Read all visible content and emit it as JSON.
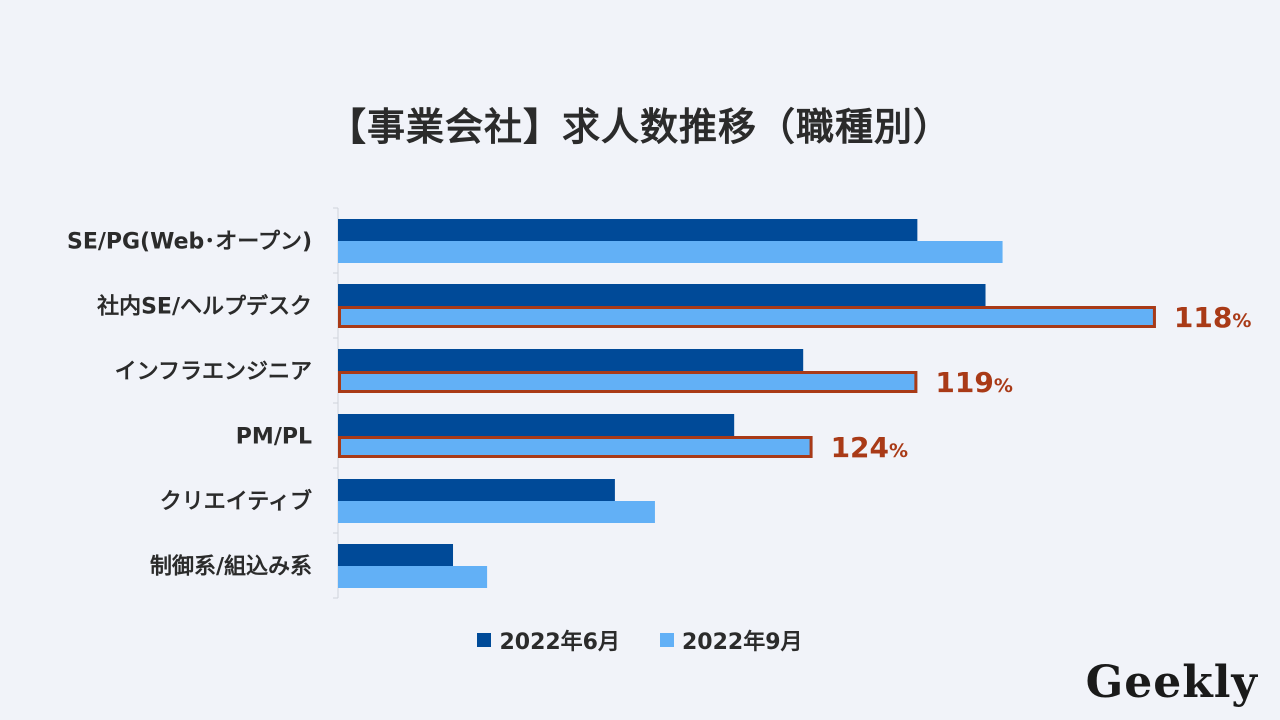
{
  "title": "【事業会社】求人数推移（職種別）",
  "logo": "Geekly",
  "colors": {
    "series1": "#004a98",
    "series2": "#62b0f6",
    "highlight": "#a93a17",
    "axis": "#d0d3da",
    "background": "#f1f3f9"
  },
  "chart_data": {
    "type": "bar",
    "orientation": "horizontal",
    "title": "【事業会社】求人数推移（職種別）",
    "categories": [
      "SE/PG(Web･オープン)",
      "社内SE/ヘルプデスク",
      "インフラエンジニア",
      "PM/PL",
      "クリエイティブ",
      "制御系/組込み系"
    ],
    "series": [
      {
        "name": "2022年6月",
        "values": [
          68,
          76,
          54.6,
          46.5,
          32.5,
          13.5
        ]
      },
      {
        "name": "2022年9月",
        "values": [
          78,
          96,
          68,
          55.7,
          37.2,
          17.5
        ]
      }
    ],
    "xlim": [
      0,
      100
    ],
    "xlabel": "",
    "ylabel": "",
    "grid": false,
    "legend": "bottom-center",
    "annotations": [
      {
        "category_index": 1,
        "series_index": 1,
        "number": "118",
        "unit": "%"
      },
      {
        "category_index": 2,
        "series_index": 1,
        "number": "119",
        "unit": "%"
      },
      {
        "category_index": 3,
        "series_index": 1,
        "number": "124",
        "unit": "%"
      }
    ]
  }
}
